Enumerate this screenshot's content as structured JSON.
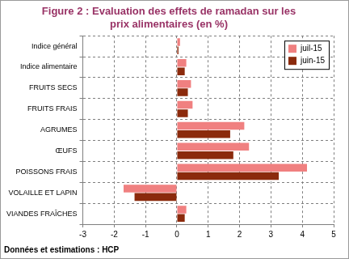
{
  "chart_data": {
    "type": "bar",
    "orientation": "horizontal",
    "title": "Figure 2 : Evaluation des effets de ramadan sur les prix alimentaires (en %)",
    "annotations": [
      "Données et estimations : HCP"
    ],
    "categories": [
      "Indice général",
      "Indice alimentaire",
      "FRUITS SECS",
      "FRUITS FRAIS",
      "AGRUMES",
      "ŒUFS",
      "POISSONS FRAIS",
      "VOLAILLE ET LAPIN",
      "VIANDES FRAÎCHES"
    ],
    "series": [
      {
        "name": "juil-15",
        "color": "#f08080",
        "values": [
          0.1,
          0.3,
          0.45,
          0.5,
          2.15,
          2.3,
          4.15,
          -1.7,
          0.3
        ]
      },
      {
        "name": "juin-15",
        "color": "#8b2a0c",
        "values": [
          0.05,
          0.25,
          0.35,
          0.35,
          1.7,
          1.8,
          3.25,
          -1.35,
          0.25
        ]
      }
    ],
    "xlim": [
      -3,
      5
    ],
    "xticks": [
      -3,
      -2,
      -1,
      0,
      1,
      2,
      3,
      4,
      5
    ],
    "grid": true,
    "legend": "top right"
  }
}
